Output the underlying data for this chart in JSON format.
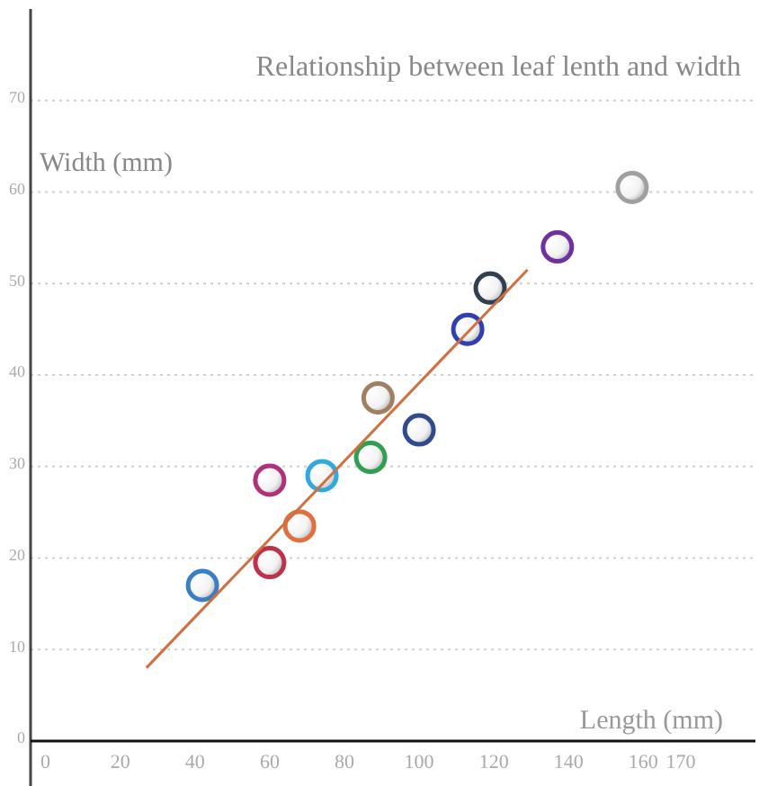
{
  "chart_data": {
    "type": "scatter",
    "title": "Relationship between leaf lenth and width",
    "xlabel": "Length (mm)",
    "ylabel": "Width (mm)",
    "xlim": [
      -4,
      190
    ],
    "ylim": [
      0,
      80
    ],
    "xticks": [
      0,
      20,
      40,
      60,
      80,
      100,
      120,
      140,
      160,
      170
    ],
    "yticks": [
      0,
      10,
      20,
      30,
      40,
      50,
      60,
      70
    ],
    "grid": "y",
    "marker": "circle",
    "series": [
      {
        "x": [
          42,
          60,
          60,
          68,
          74,
          87,
          89,
          100,
          113,
          119,
          137,
          157
        ],
        "values": [
          17,
          19.5,
          28.5,
          23.5,
          29,
          31,
          37.5,
          34,
          45,
          49.5,
          54,
          60.5
        ],
        "colors": [
          "#3a7fc4",
          "#c0304a",
          "#b0307a",
          "#e07040",
          "#30a8e0",
          "#30a050",
          "#a08060",
          "#304a90",
          "#3040b0",
          "#304050",
          "#7030a0",
          "#a0a0a0"
        ]
      },
      {
        "type": "line",
        "x": [
          27,
          129
        ],
        "values": [
          8,
          51.5
        ],
        "color": "#d07040",
        "marker": "none"
      }
    ]
  }
}
